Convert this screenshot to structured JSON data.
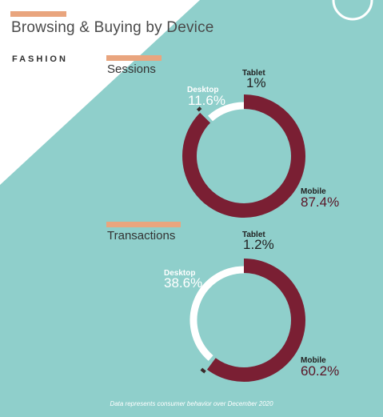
{
  "title": "Browsing & Buying by Device",
  "subtitle": "FASHION",
  "footnote": "Data represents consumer behavior over December 2020",
  "colors": {
    "background": "#8fcfcb",
    "accent": "#e9a57e",
    "mobile": "#7a1f33",
    "desktop": "#ffffff",
    "tablet": "#3a2a2a"
  },
  "chart_data": [
    {
      "type": "pie",
      "title": "Sessions",
      "donut": true,
      "slices": [
        {
          "name": "Mobile",
          "value": 87.4,
          "label": "87.4%"
        },
        {
          "name": "Tablet",
          "value": 1,
          "label": "1%"
        },
        {
          "name": "Desktop",
          "value": 11.6,
          "label": "11.6%"
        }
      ]
    },
    {
      "type": "pie",
      "title": "Transactions",
      "donut": true,
      "slices": [
        {
          "name": "Mobile",
          "value": 60.2,
          "label": "60.2%"
        },
        {
          "name": "Tablet",
          "value": 1.2,
          "label": "1.2%"
        },
        {
          "name": "Desktop",
          "value": 38.6,
          "label": "38.6%"
        }
      ]
    }
  ]
}
